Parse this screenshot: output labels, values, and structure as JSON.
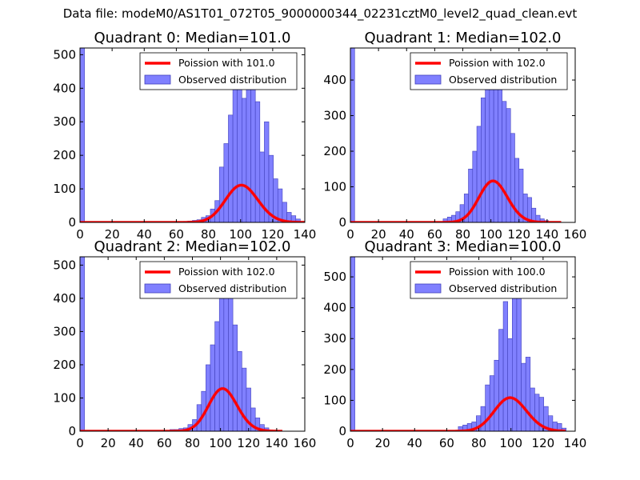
{
  "suptitle": "Data file: modeM0/AS1T01_072T05_9000000344_02231cztM0_level2_quad_clean.evt",
  "colors": {
    "hist_fill": "#8080ff",
    "hist_edge": "#4040bb",
    "fit_line": "#ff0000",
    "legend_edge": "#000000"
  },
  "chart_data": [
    {
      "type": "bar",
      "title": "Quadrant 0: Median=101.0",
      "xlim": [
        0,
        140
      ],
      "ylim": [
        0,
        520
      ],
      "xticks": [
        0,
        20,
        40,
        60,
        80,
        100,
        120,
        140
      ],
      "yticks": [
        0,
        100,
        200,
        300,
        400,
        500
      ],
      "legend_position": "top-right",
      "legend": [
        "Poission with 101.0",
        "Observed distribution"
      ],
      "bin_width": 2.8,
      "bins": [
        [
          0,
          525
        ],
        [
          64.4,
          3
        ],
        [
          67.2,
          4
        ],
        [
          70,
          6
        ],
        [
          72.8,
          8
        ],
        [
          75.6,
          15
        ],
        [
          78.4,
          20
        ],
        [
          81.2,
          40
        ],
        [
          84,
          65
        ],
        [
          86.8,
          165
        ],
        [
          89.6,
          235
        ],
        [
          92.4,
          320
        ],
        [
          95.2,
          410
        ],
        [
          98,
          450
        ],
        [
          100.8,
          370
        ],
        [
          103.6,
          400
        ],
        [
          106.4,
          490
        ],
        [
          109.2,
          360
        ],
        [
          112,
          210
        ],
        [
          114.8,
          300
        ],
        [
          117.6,
          200
        ],
        [
          120.4,
          130
        ],
        [
          123.2,
          100
        ],
        [
          126,
          60
        ],
        [
          128.8,
          30
        ],
        [
          131.6,
          20
        ],
        [
          134.4,
          10
        ],
        [
          137.2,
          3
        ]
      ],
      "series": [
        {
          "name": "Poission with 101.0",
          "mean": 101.0,
          "scale": 2800,
          "x_range": [
            0,
            140
          ]
        }
      ]
    },
    {
      "type": "bar",
      "title": "Quadrant 1: Median=102.0",
      "xlim": [
        0,
        160
      ],
      "ylim": [
        0,
        490
      ],
      "xticks": [
        0,
        20,
        40,
        60,
        80,
        100,
        120,
        140,
        160
      ],
      "yticks": [
        0,
        100,
        200,
        300,
        400
      ],
      "legend_position": "top-right",
      "legend": [
        "Poission with 102.0",
        "Observed distribution"
      ],
      "bin_width": 3.0,
      "bins": [
        [
          0,
          490
        ],
        [
          66,
          10
        ],
        [
          69,
          15
        ],
        [
          72,
          20
        ],
        [
          75,
          30
        ],
        [
          78,
          50
        ],
        [
          81,
          80
        ],
        [
          84,
          150
        ],
        [
          87,
          200
        ],
        [
          90,
          270
        ],
        [
          93,
          350
        ],
        [
          96,
          380
        ],
        [
          99,
          420
        ],
        [
          102,
          440
        ],
        [
          105,
          470
        ],
        [
          108,
          340
        ],
        [
          111,
          320
        ],
        [
          114,
          250
        ],
        [
          117,
          180
        ],
        [
          120,
          150
        ],
        [
          123,
          80
        ],
        [
          126,
          70
        ],
        [
          129,
          40
        ],
        [
          132,
          20
        ],
        [
          135,
          10
        ],
        [
          138,
          5
        ]
      ],
      "series": [
        {
          "name": "Poission with 102.0",
          "mean": 102.0,
          "scale": 2950,
          "x_range": [
            0,
            150
          ]
        }
      ]
    },
    {
      "type": "bar",
      "title": "Quadrant 2: Median=102.0",
      "xlim": [
        0,
        160
      ],
      "ylim": [
        0,
        525
      ],
      "xticks": [
        0,
        20,
        40,
        60,
        80,
        100,
        120,
        140,
        160
      ],
      "yticks": [
        0,
        100,
        200,
        300,
        400,
        500
      ],
      "legend_position": "top-right",
      "legend": [
        "Poission with 102.0",
        "Observed distribution"
      ],
      "bin_width": 3.2,
      "bins": [
        [
          0,
          525
        ],
        [
          64,
          5
        ],
        [
          67.2,
          5
        ],
        [
          70.4,
          8
        ],
        [
          73.6,
          10
        ],
        [
          76.8,
          20
        ],
        [
          80,
          35
        ],
        [
          83.2,
          80
        ],
        [
          86.4,
          120
        ],
        [
          89.6,
          200
        ],
        [
          92.8,
          260
        ],
        [
          96,
          330
        ],
        [
          99.2,
          400
        ],
        [
          102.4,
          500
        ],
        [
          105.6,
          420
        ],
        [
          108.8,
          320
        ],
        [
          112,
          240
        ],
        [
          115.2,
          190
        ],
        [
          118.4,
          130
        ],
        [
          121.6,
          70
        ],
        [
          124.8,
          40
        ],
        [
          128,
          20
        ],
        [
          131.2,
          10
        ]
      ],
      "series": [
        {
          "name": "Poission with 102.0",
          "mean": 102.0,
          "scale": 3250,
          "x_range": [
            0,
            144
          ]
        }
      ]
    },
    {
      "type": "bar",
      "title": "Quadrant 3: Median=100.0",
      "xlim": [
        0,
        140
      ],
      "ylim": [
        0,
        565
      ],
      "xticks": [
        0,
        20,
        40,
        60,
        80,
        100,
        120,
        140
      ],
      "yticks": [
        0,
        100,
        200,
        300,
        400,
        500
      ],
      "legend_position": "top-right",
      "legend": [
        "Poission with 100.0",
        "Observed distribution"
      ],
      "bin_width": 2.8,
      "bins": [
        [
          0,
          565
        ],
        [
          67.2,
          15
        ],
        [
          70,
          20
        ],
        [
          72.8,
          25
        ],
        [
          75.6,
          30
        ],
        [
          78.4,
          50
        ],
        [
          81.2,
          80
        ],
        [
          84,
          150
        ],
        [
          86.8,
          180
        ],
        [
          89.6,
          230
        ],
        [
          92.4,
          330
        ],
        [
          95.2,
          420
        ],
        [
          98,
          300
        ],
        [
          100.8,
          550
        ],
        [
          103.6,
          520
        ],
        [
          106.4,
          220
        ],
        [
          109.2,
          240
        ],
        [
          112,
          140
        ],
        [
          114.8,
          120
        ],
        [
          117.6,
          110
        ],
        [
          120.4,
          80
        ],
        [
          123.2,
          50
        ],
        [
          126,
          30
        ],
        [
          128.8,
          25
        ],
        [
          131.6,
          10
        ]
      ],
      "series": [
        {
          "name": "Poission with 100.0",
          "mean": 100.0,
          "scale": 2720,
          "x_range": [
            0,
            134
          ]
        }
      ]
    }
  ]
}
